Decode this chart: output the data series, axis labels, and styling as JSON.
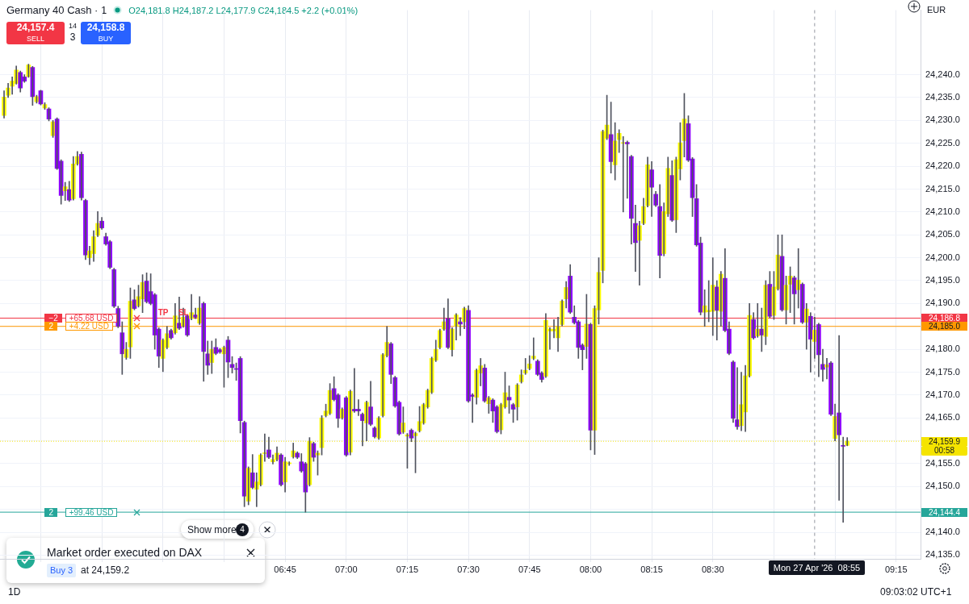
{
  "chart_data": {
    "type": "candlestick",
    "title": "Germany 40 Cash · 1",
    "subtitle": "O24,181.8 H24,187.2 L24,177.9 C24,184.5 +2.2 (+0.01%)",
    "ylabel": "EUR",
    "x": [
      "2026-04-27T05:36",
      "2026-04-27T05:37",
      "2026-04-27T05:38",
      "2026-04-27T05:39",
      "2026-04-27T05:40",
      "2026-04-27T05:41",
      "2026-04-27T05:42",
      "2026-04-27T05:43",
      "2026-04-27T05:44",
      "2026-04-27T05:45",
      "2026-04-27T05:46",
      "2026-04-27T05:47",
      "2026-04-27T05:48",
      "2026-04-27T05:49",
      "2026-04-27T05:50",
      "2026-04-27T05:51",
      "2026-04-27T05:52",
      "2026-04-27T05:53",
      "2026-04-27T05:54",
      "2026-04-27T05:55",
      "2026-04-27T05:56",
      "2026-04-27T05:57",
      "2026-04-27T05:58",
      "2026-04-27T05:59",
      "2026-04-27T06:00",
      "2026-04-27T06:01",
      "2026-04-27T06:02",
      "2026-04-27T06:03",
      "2026-04-27T06:04",
      "2026-04-27T06:05",
      "2026-04-27T06:06",
      "2026-04-27T06:07",
      "2026-04-27T06:08",
      "2026-04-27T06:09",
      "2026-04-27T06:10",
      "2026-04-27T06:11",
      "2026-04-27T06:12",
      "2026-04-27T06:13",
      "2026-04-27T06:14",
      "2026-04-27T06:15",
      "2026-04-27T06:16",
      "2026-04-27T06:17",
      "2026-04-27T06:18",
      "2026-04-27T06:19",
      "2026-04-27T06:20",
      "2026-04-27T06:21",
      "2026-04-27T06:22",
      "2026-04-27T06:23",
      "2026-04-27T06:24",
      "2026-04-27T06:25",
      "2026-04-27T06:26",
      "2026-04-27T06:27",
      "2026-04-27T06:28",
      "2026-04-27T06:29",
      "2026-04-27T06:30",
      "2026-04-27T06:31",
      "2026-04-27T06:32",
      "2026-04-27T06:33",
      "2026-04-27T06:34",
      "2026-04-27T06:35",
      "2026-04-27T06:36",
      "2026-04-27T06:37",
      "2026-04-27T06:38",
      "2026-04-27T06:39",
      "2026-04-27T06:40",
      "2026-04-27T06:41",
      "2026-04-27T06:42",
      "2026-04-27T06:43",
      "2026-04-27T06:44",
      "2026-04-27T06:45",
      "2026-04-27T06:46",
      "2026-04-27T06:47",
      "2026-04-27T06:48",
      "2026-04-27T06:49",
      "2026-04-27T06:50",
      "2026-04-27T06:51",
      "2026-04-27T06:52",
      "2026-04-27T06:53",
      "2026-04-27T06:54",
      "2026-04-27T06:55",
      "2026-04-27T06:56",
      "2026-04-27T06:57",
      "2026-04-27T06:58",
      "2026-04-27T06:59",
      "2026-04-27T07:00",
      "2026-04-27T07:01",
      "2026-04-27T07:02",
      "2026-04-27T07:03",
      "2026-04-27T07:04",
      "2026-04-27T07:05",
      "2026-04-27T07:06",
      "2026-04-27T07:07",
      "2026-04-27T07:08",
      "2026-04-27T07:09",
      "2026-04-27T07:10",
      "2026-04-27T07:11",
      "2026-04-27T07:12",
      "2026-04-27T07:13",
      "2026-04-27T07:14",
      "2026-04-27T07:15",
      "2026-04-27T07:16",
      "2026-04-27T07:17",
      "2026-04-27T07:18",
      "2026-04-27T07:19",
      "2026-04-27T07:20",
      "2026-04-27T07:21",
      "2026-04-27T07:22",
      "2026-04-27T07:23",
      "2026-04-27T07:24",
      "2026-04-27T07:25",
      "2026-04-27T07:26",
      "2026-04-27T07:27",
      "2026-04-27T07:28",
      "2026-04-27T07:29",
      "2026-04-27T07:30",
      "2026-04-27T07:31",
      "2026-04-27T07:32",
      "2026-04-27T07:33",
      "2026-04-27T07:34",
      "2026-04-27T07:35",
      "2026-04-27T07:36",
      "2026-04-27T07:37",
      "2026-04-27T07:38",
      "2026-04-27T07:39",
      "2026-04-27T07:40",
      "2026-04-27T07:41",
      "2026-04-27T07:42",
      "2026-04-27T07:43",
      "2026-04-27T07:44",
      "2026-04-27T07:45",
      "2026-04-27T07:46",
      "2026-04-27T07:47",
      "2026-04-27T07:48",
      "2026-04-27T07:49",
      "2026-04-27T07:50",
      "2026-04-27T07:51",
      "2026-04-27T07:52",
      "2026-04-27T07:53",
      "2026-04-27T07:54",
      "2026-04-27T07:55",
      "2026-04-27T07:56",
      "2026-04-27T07:57",
      "2026-04-27T07:58",
      "2026-04-27T07:59",
      "2026-04-27T08:00",
      "2026-04-27T08:01",
      "2026-04-27T08:02",
      "2026-04-27T08:03",
      "2026-04-27T08:04",
      "2026-04-27T08:05",
      "2026-04-27T08:06",
      "2026-04-27T08:07",
      "2026-04-27T08:08",
      "2026-04-27T08:09",
      "2026-04-27T08:10",
      "2026-04-27T08:11",
      "2026-04-27T08:12",
      "2026-04-27T08:13",
      "2026-04-27T08:14",
      "2026-04-27T08:15",
      "2026-04-27T08:16",
      "2026-04-27T08:17",
      "2026-04-27T08:18",
      "2026-04-27T08:19",
      "2026-04-27T08:20",
      "2026-04-27T08:21",
      "2026-04-27T08:22",
      "2026-04-27T08:23",
      "2026-04-27T08:24",
      "2026-04-27T08:25",
      "2026-04-27T08:26",
      "2026-04-27T08:27",
      "2026-04-27T08:28",
      "2026-04-27T08:29",
      "2026-04-27T08:30",
      "2026-04-27T08:31",
      "2026-04-27T08:32",
      "2026-04-27T08:33",
      "2026-04-27T08:34",
      "2026-04-27T08:35",
      "2026-04-27T08:36",
      "2026-04-27T08:37",
      "2026-04-27T08:38",
      "2026-04-27T08:39",
      "2026-04-27T08:40",
      "2026-04-27T08:41",
      "2026-04-27T08:42",
      "2026-04-27T08:43",
      "2026-04-27T08:44",
      "2026-04-27T08:45",
      "2026-04-27T08:46",
      "2026-04-27T08:47",
      "2026-04-27T08:48",
      "2026-04-27T08:49",
      "2026-04-27T08:50",
      "2026-04-27T08:51",
      "2026-04-27T08:52",
      "2026-04-27T08:53",
      "2026-04-27T08:54",
      "2026-04-27T08:55",
      "2026-04-27T08:56",
      "2026-04-27T08:57",
      "2026-04-27T08:58",
      "2026-04-27T08:59",
      "2026-04-27T09:00",
      "2026-04-27T09:01",
      "2026-04-27T09:02",
      "2026-04-27T09:03"
    ],
    "ohlc": [
      [
        24231.1,
        24236.5,
        24230.5,
        24235.1
      ],
      [
        24235.5,
        24238.1,
        24235.0,
        24237.1
      ],
      [
        24237.5,
        24239.5,
        24235.7,
        24238.6
      ],
      [
        24238.1,
        24241.9,
        24237.9,
        24241.0
      ],
      [
        24240.5,
        24240.8,
        24236.2,
        24237.1
      ],
      [
        24239.5,
        24240.0,
        24238.3,
        24238.6
      ],
      [
        24239.6,
        24242.3,
        24239.4,
        24242.1
      ],
      [
        24241.6,
        24241.8,
        24233.3,
        24235.2
      ],
      [
        24234.1,
        24235.5,
        24233.8,
        24235.2
      ],
      [
        24236.5,
        24236.6,
        24233.4,
        24233.6
      ],
      [
        24232.7,
        24233.9,
        24232.4,
        24233.5
      ],
      [
        24232.5,
        24232.8,
        24229.9,
        24230.3
      ],
      [
        24226.7,
        24230.0,
        24226.3,
        24229.7
      ],
      [
        24230.3,
        24230.6,
        24219.3,
        24219.5
      ],
      [
        24221.1,
        24221.4,
        24211.7,
        24213.6
      ],
      [
        24214.6,
        24216.5,
        24212.5,
        24215.5
      ],
      [
        24214.9,
        24216.7,
        24212.3,
        24212.6
      ],
      [
        24212.9,
        24222.1,
        24212.6,
        24220.5
      ],
      [
        24220.5,
        24223.2,
        24220.2,
        24222.1
      ],
      [
        24222.6,
        24223.1,
        24212.6,
        24213.1
      ],
      [
        24212.5,
        24212.8,
        24199.6,
        24200.6
      ],
      [
        24200.0,
        24202.5,
        24198.5,
        24201.5
      ],
      [
        24200.9,
        24205.9,
        24199.2,
        24204.6
      ],
      [
        24204.9,
        24210.1,
        24204.6,
        24207.5
      ],
      [
        24208.0,
        24208.8,
        24206.2,
        24206.5
      ],
      [
        24204.6,
        24205.4,
        24202.7,
        24203.0
      ],
      [
        24203.5,
        24203.8,
        24197.6,
        24197.9
      ],
      [
        24197.4,
        24197.7,
        24189.1,
        24189.4
      ],
      [
        24188.9,
        24189.4,
        24184.7,
        24185.0
      ],
      [
        24183.6,
        24186.0,
        24174.5,
        24179.0
      ],
      [
        24178.2,
        24181.5,
        24177.8,
        24180.0
      ],
      [
        24180.5,
        24193.4,
        24178.0,
        24190.5
      ],
      [
        24190.8,
        24193.0,
        24188.6,
        24188.9
      ],
      [
        24189.5,
        24194.0,
        24189.2,
        24191.5
      ],
      [
        24191.0,
        24196.3,
        24188.0,
        24194.6
      ],
      [
        24194.9,
        24196.7,
        24190.1,
        24190.4
      ],
      [
        24192.6,
        24196.5,
        24189.7,
        24190.0
      ],
      [
        24191.9,
        24192.2,
        24180.0,
        24183.1
      ],
      [
        24184.4,
        24184.7,
        24176.0,
        24178.5
      ],
      [
        24178.0,
        24182.3,
        24175.1,
        24182.0
      ],
      [
        24180.4,
        24185.0,
        24180.1,
        24183.4
      ],
      [
        24184.1,
        24184.4,
        24182.2,
        24182.5
      ],
      [
        24183.6,
        24190.0,
        24183.3,
        24187.3
      ],
      [
        24185.7,
        24191.4,
        24184.3,
        24184.6
      ],
      [
        24185.1,
        24189.0,
        24184.8,
        24187.0
      ],
      [
        24187.3,
        24187.6,
        24182.8,
        24183.1
      ],
      [
        24186.7,
        24192.0,
        24186.4,
        24188.0
      ],
      [
        24187.5,
        24189.0,
        24186.7,
        24187.0
      ],
      [
        24185.7,
        24191.5,
        24185.4,
        24189.0
      ],
      [
        24190.0,
        24190.3,
        24173.0,
        24179.5
      ],
      [
        24179.0,
        24181.8,
        24174.5,
        24176.5
      ],
      [
        24177.1,
        24181.8,
        24174.7,
        24180.0
      ],
      [
        24180.4,
        24182.3,
        24178.8,
        24179.1
      ],
      [
        24179.9,
        24180.2,
        24179.1,
        24179.4
      ],
      [
        24179.0,
        24180.7,
        24171.7,
        24180.4
      ],
      [
        24182.0,
        24182.8,
        24173.8,
        24177.2
      ],
      [
        24176.7,
        24178.4,
        24174.8,
        24176.0
      ],
      [
        24175.7,
        24177.0,
        24173.2,
        24175.6
      ],
      [
        24178.0,
        24178.4,
        24161.7,
        24164.4
      ],
      [
        24164.0,
        24164.3,
        24145.6,
        24147.9
      ],
      [
        24146.8,
        24154.3,
        24146.0,
        24154.0
      ],
      [
        24153.0,
        24157.0,
        24149.5,
        24149.8
      ],
      [
        24149.4,
        24153.0,
        24145.6,
        24151.0
      ],
      [
        24150.4,
        24157.2,
        24150.1,
        24156.9
      ],
      [
        24157.2,
        24161.5,
        24155.5,
        24157.3
      ],
      [
        24158.0,
        24160.8,
        24156.1,
        24156.4
      ],
      [
        24155.4,
        24156.9,
        24154.9,
        24155.9
      ],
      [
        24155.9,
        24158.7,
        24155.6,
        24157.3
      ],
      [
        24156.9,
        24157.2,
        24150.1,
        24150.4
      ],
      [
        24151.0,
        24156.4,
        24148.8,
        24155.4
      ],
      [
        24155.0,
        24155.4,
        24154.6,
        24155.0
      ],
      [
        24156.5,
        24159.5,
        24156.2,
        24157.8
      ],
      [
        24157.3,
        24157.6,
        24156.1,
        24156.4
      ],
      [
        24155.4,
        24157.2,
        24153.1,
        24153.4
      ],
      [
        24155.0,
        24155.3,
        24144.4,
        24148.8
      ],
      [
        24150.4,
        24160.7,
        24150.1,
        24159.9
      ],
      [
        24159.4,
        24159.7,
        24155.5,
        24156.4
      ],
      [
        24156.9,
        24157.8,
        24152.5,
        24157.3
      ],
      [
        24158.5,
        24165.5,
        24156.9,
        24165.0
      ],
      [
        24165.5,
        24168.0,
        24165.2,
        24166.5
      ],
      [
        24166.0,
        24172.5,
        24165.7,
        24171.0
      ],
      [
        24171.4,
        24174.0,
        24168.7,
        24169.0
      ],
      [
        24170.0,
        24170.3,
        24162.9,
        24164.9
      ],
      [
        24165.0,
        24167.2,
        24164.7,
        24166.9
      ],
      [
        24169.4,
        24169.7,
        24156.6,
        24156.9
      ],
      [
        24157.5,
        24171.1,
        24156.9,
        24170.8
      ],
      [
        24166.9,
        24175.8,
        24166.2,
        24166.5
      ],
      [
        24166.9,
        24169.0,
        24165.5,
        24166.5
      ],
      [
        24165.8,
        24166.1,
        24158.9,
        24164.4
      ],
      [
        24163.9,
        24168.7,
        24160.0,
        24168.4
      ],
      [
        24167.4,
        24173.0,
        24163.3,
        24163.6
      ],
      [
        24162.8,
        24163.1,
        24160.6,
        24160.9
      ],
      [
        24160.6,
        24165.3,
        24160.3,
        24165.0
      ],
      [
        24165.5,
        24179.1,
        24165.2,
        24178.8
      ],
      [
        24178.6,
        24185.0,
        24178.3,
        24181.5
      ],
      [
        24181.2,
        24181.5,
        24172.5,
        24174.5
      ],
      [
        24173.8,
        24174.1,
        24167.3,
        24167.6
      ],
      [
        24168.4,
        24168.7,
        24161.2,
        24161.5
      ],
      [
        24161.9,
        24167.4,
        24161.6,
        24163.9
      ],
      [
        24161.0,
        24161.6,
        24154.0,
        24161.3
      ],
      [
        24162.3,
        24162.6,
        24159.8,
        24160.6
      ],
      [
        24161.1,
        24161.9,
        24153.0,
        24161.6
      ],
      [
        24162.2,
        24167.5,
        24161.9,
        24164.2
      ],
      [
        24163.9,
        24168.2,
        24163.6,
        24167.9
      ],
      [
        24167.4,
        24171.3,
        24167.1,
        24171.0
      ],
      [
        24170.6,
        24178.3,
        24170.3,
        24178.0
      ],
      [
        24177.6,
        24182.0,
        24177.3,
        24180.0
      ],
      [
        24180.4,
        24184.4,
        24180.1,
        24184.1
      ],
      [
        24184.4,
        24189.0,
        24184.1,
        24186.0
      ],
      [
        24186.7,
        24191.0,
        24180.1,
        24180.4
      ],
      [
        24179.9,
        24184.7,
        24178.5,
        24184.4
      ],
      [
        24185.1,
        24187.8,
        24182.0,
        24187.5
      ],
      [
        24186.0,
        24186.9,
        24183.0,
        24185.5
      ],
      [
        24186.0,
        24189.2,
        24184.5,
        24188.9
      ],
      [
        24188.5,
        24189.5,
        24168.4,
        24168.7
      ],
      [
        24170.0,
        24170.3,
        24164.0,
        24169.7
      ],
      [
        24169.5,
        24175.7,
        24168.0,
        24175.4
      ],
      [
        24174.8,
        24178.0,
        24172.0,
        24176.4
      ],
      [
        24175.9,
        24176.7,
        24168.4,
        24168.7
      ],
      [
        24168.1,
        24169.7,
        24166.0,
        24169.4
      ],
      [
        24168.9,
        24169.2,
        24164.0,
        24166.5
      ],
      [
        24167.4,
        24167.7,
        24161.7,
        24162.0
      ],
      [
        24162.4,
        24168.2,
        24161.5,
        24167.9
      ],
      [
        24167.4,
        24175.0,
        24167.1,
        24170.5
      ],
      [
        24169.5,
        24172.0,
        24166.0,
        24168.9
      ],
      [
        24167.9,
        24168.2,
        24164.0,
        24166.9
      ],
      [
        24167.4,
        24172.5,
        24164.5,
        24172.2
      ],
      [
        24172.9,
        24175.5,
        24172.6,
        24174.4
      ],
      [
        24174.8,
        24178.0,
        24174.5,
        24175.4
      ],
      [
        24175.8,
        24178.6,
        24175.5,
        24176.8
      ],
      [
        24178.0,
        24182.5,
        24177.7,
        24178.5
      ],
      [
        24177.4,
        24177.7,
        24174.2,
        24174.5
      ],
      [
        24174.8,
        24175.1,
        24172.8,
        24173.4
      ],
      [
        24174.1,
        24187.8,
        24173.8,
        24186.3
      ],
      [
        24184.0,
        24184.7,
        24180.0,
        24184.4
      ],
      [
        24184.0,
        24186.5,
        24182.5,
        24184.4
      ],
      [
        24182.5,
        24187.0,
        24179.5,
        24184.9
      ],
      [
        24185.4,
        24190.8,
        24185.1,
        24190.5
      ],
      [
        24191.0,
        24194.8,
        24189.0,
        24193.5
      ],
      [
        24196.0,
        24198.5,
        24187.8,
        24188.1
      ],
      [
        24187.0,
        24189.5,
        24185.5,
        24185.8
      ],
      [
        24186.0,
        24186.3,
        24178.0,
        24180.4
      ],
      [
        24180.9,
        24181.2,
        24175.5,
        24179.9
      ],
      [
        24180.6,
        24192.0,
        24178.0,
        24185.5
      ],
      [
        24185.4,
        24185.7,
        24158.0,
        24162.3
      ],
      [
        24162.3,
        24189.5,
        24157.0,
        24188.9
      ],
      [
        24188.6,
        24200.0,
        24185.5,
        24196.8
      ],
      [
        24197.2,
        24227.9,
        24194.5,
        24227.6
      ],
      [
        24226.1,
        24235.5,
        24225.8,
        24229.0
      ],
      [
        24226.9,
        24234.0,
        24218.5,
        24221.0
      ],
      [
        24220.3,
        24229.5,
        24217.0,
        24225.5
      ],
      [
        24225.8,
        24228.0,
        24223.0,
        24227.2
      ],
      [
        24225.0,
        24226.5,
        24210.0,
        24225.1
      ],
      [
        24225.2,
        24225.5,
        24213.0,
        24224.9
      ],
      [
        24222.1,
        24222.4,
        24203.0,
        24208.6
      ],
      [
        24207.5,
        24211.5,
        24197.0,
        24203.3
      ],
      [
        24203.8,
        24208.0,
        24194.0,
        24207.0
      ],
      [
        24207.5,
        24213.0,
        24207.2,
        24211.2
      ],
      [
        24211.4,
        24222.0,
        24211.1,
        24220.3
      ],
      [
        24219.2,
        24221.0,
        24209.0,
        24215.4
      ],
      [
        24213.9,
        24214.5,
        24211.2,
        24211.5
      ],
      [
        24211.2,
        24216.0,
        24195.6,
        24200.5
      ],
      [
        24200.9,
        24212.0,
        24200.4,
        24210.1
      ],
      [
        24209.6,
        24222.0,
        24209.0,
        24219.5
      ],
      [
        24218.0,
        24221.2,
        24207.9,
        24208.2
      ],
      [
        24208.3,
        24222.0,
        24205.5,
        24221.4
      ],
      [
        24219.4,
        24229.5,
        24217.0,
        24225.1
      ],
      [
        24225.6,
        24235.9,
        24222.0,
        24230.3
      ],
      [
        24229.3,
        24231.0,
        24221.0,
        24221.3
      ],
      [
        24221.6,
        24221.9,
        24209.0,
        24213.1
      ],
      [
        24212.9,
        24216.0,
        24202.5,
        24202.8
      ],
      [
        24203.2,
        24204.5,
        24187.5,
        24188.1
      ],
      [
        24188.1,
        24193.0,
        24185.0,
        24189.5
      ],
      [
        24188.2,
        24195.0,
        24186.0,
        24188.5
      ],
      [
        24188.3,
        24200.0,
        24183.0,
        24194.0
      ],
      [
        24193.6,
        24195.0,
        24182.0,
        24188.5
      ],
      [
        24188.3,
        24197.0,
        24185.0,
        24196.4
      ],
      [
        24195.5,
        24202.0,
        24183.8,
        24184.1
      ],
      [
        24184.4,
        24186.0,
        24178.8,
        24179.1
      ],
      [
        24177.2,
        24177.5,
        24164.0,
        24164.9
      ],
      [
        24164.6,
        24176.0,
        24162.5,
        24163.1
      ],
      [
        24163.3,
        24175.0,
        24162.2,
        24167.9
      ],
      [
        24166.3,
        24176.5,
        24162.0,
        24174.2
      ],
      [
        24174.2,
        24190.0,
        24173.9,
        24187.4
      ],
      [
        24186.5,
        24188.0,
        24182.2,
        24182.5
      ],
      [
        24182.9,
        24190.0,
        24182.6,
        24184.4
      ],
      [
        24184.4,
        24189.0,
        24179.5,
        24183.1
      ],
      [
        24182.8,
        24195.0,
        24181.0,
        24194.0
      ],
      [
        24194.2,
        24197.0,
        24186.9,
        24187.2
      ],
      [
        24187.4,
        24197.0,
        24186.5,
        24193.6
      ],
      [
        24193.2,
        24205.0,
        24192.9,
        24200.6
      ],
      [
        24200.3,
        24205.0,
        24188.3,
        24188.6
      ],
      [
        24188.6,
        24196.0,
        24185.5,
        24194.0
      ],
      [
        24194.2,
        24198.0,
        24188.0,
        24196.0
      ],
      [
        24195.6,
        24196.0,
        24185.5,
        24192.1
      ],
      [
        24193.0,
        24202.0,
        24189.0,
        24195.1
      ],
      [
        24194.2,
        24194.5,
        24185.6,
        24185.9
      ],
      [
        24185.9,
        24190.0,
        24180.0,
        24188.8
      ],
      [
        24187.2,
        24188.0,
        24175.0,
        24182.2
      ],
      [
        24181.7,
        24187.0,
        24178.0,
        24184.2
      ],
      [
        24185.4,
        24185.7,
        24174.0,
        24178.8
      ],
      [
        24176.7,
        24180.0,
        24173.0,
        24175.6
      ],
      [
        24176.1,
        24178.0,
        24173.5,
        24176.6
      ],
      [
        24177.0,
        24177.3,
        24165.5,
        24165.8
      ],
      [
        24160.5,
        24168.0,
        24160.0,
        24165.3
      ],
      [
        24166.1,
        24183.0,
        24147.0,
        24161.3
      ],
      [
        24159.0,
        24160.8,
        24142.2,
        24158.8
      ],
      [
        24159.0,
        24160.7,
        24158.9,
        24159.9
      ]
    ],
    "colors": [
      "#ffff00",
      "#ffff00",
      "#ffff00",
      "#ffff00",
      "#8e00ff",
      "#8e00ff",
      "#ffff00",
      "#8e00ff",
      "#ffff00",
      "#8e00ff",
      "#ffff00",
      "#8e00ff",
      "#ffff00",
      "#8e00ff",
      "#8e00ff",
      "#ffff00",
      "#8e00ff",
      "#ffff00",
      "#ffff00",
      "#8e00ff",
      "#8e00ff",
      "#ffff00",
      "#ffff00",
      "#ffff00",
      "#8e00ff",
      "#8e00ff",
      "#8e00ff",
      "#8e00ff",
      "#8e00ff",
      "#8e00ff",
      "#ffff00",
      "#ffff00",
      "#8e00ff",
      "#ffff00",
      "#ffff00",
      "#8e00ff",
      "#8e00ff",
      "#8e00ff",
      "#8e00ff",
      "#ffff00",
      "#ffff00",
      "#8e00ff",
      "#ffff00",
      "#8e00ff",
      "#ffff00",
      "#8e00ff",
      "#ffff00",
      "#8e00ff",
      "#ffff00",
      "#8e00ff",
      "#8e00ff",
      "#ffff00",
      "#8e00ff",
      "#8e00ff",
      "#ffff00",
      "#8e00ff",
      "#8e00ff",
      "#8e00ff",
      "#8e00ff",
      "#8e00ff",
      "#ffff00",
      "#8e00ff",
      "#ffff00",
      "#ffff00",
      "#ffff00",
      "#8e00ff",
      "#ffff00",
      "#ffff00",
      "#8e00ff",
      "#ffff00",
      "#ffff00",
      "#ffff00",
      "#8e00ff",
      "#8e00ff",
      "#8e00ff",
      "#ffff00",
      "#8e00ff",
      "#ffff00",
      "#ffff00",
      "#ffff00",
      "#ffff00",
      "#8e00ff",
      "#8e00ff",
      "#ffff00",
      "#8e00ff",
      "#ffff00",
      "#8e00ff",
      "#8e00ff",
      "#8e00ff",
      "#ffff00",
      "#8e00ff",
      "#8e00ff",
      "#ffff00",
      "#ffff00",
      "#ffff00",
      "#8e00ff",
      "#8e00ff",
      "#8e00ff",
      "#ffff00",
      "#ffff00",
      "#8e00ff",
      "#ffff00",
      "#ffff00",
      "#ffff00",
      "#ffff00",
      "#ffff00",
      "#ffff00",
      "#ffff00",
      "#ffff00",
      "#8e00ff",
      "#ffff00",
      "#ffff00",
      "#8e00ff",
      "#ffff00",
      "#8e00ff",
      "#8e00ff",
      "#ffff00",
      "#ffff00",
      "#8e00ff",
      "#ffff00",
      "#8e00ff",
      "#8e00ff",
      "#ffff00",
      "#ffff00",
      "#8e00ff",
      "#8e00ff",
      "#ffff00",
      "#ffff00",
      "#ffff00",
      "#ffff00",
      "#ffff00",
      "#8e00ff",
      "#8e00ff",
      "#ffff00",
      "#ffff00",
      "#ffff00",
      "#ffff00",
      "#ffff00",
      "#ffff00",
      "#8e00ff",
      "#8e00ff",
      "#8e00ff",
      "#8e00ff",
      "#ffff00",
      "#8e00ff",
      "#ffff00",
      "#ffff00",
      "#ffff00",
      "#ffff00",
      "#8e00ff",
      "#ffff00",
      "#ffff00",
      "#ffff00",
      "#8e00ff",
      "#8e00ff",
      "#8e00ff",
      "#ffff00",
      "#ffff00",
      "#ffff00",
      "#8e00ff",
      "#8e00ff",
      "#8e00ff",
      "#ffff00",
      "#ffff00",
      "#8e00ff",
      "#ffff00",
      "#ffff00",
      "#ffff00",
      "#8e00ff",
      "#8e00ff",
      "#8e00ff",
      "#8e00ff",
      "#ffff00",
      "#ffff00",
      "#ffff00",
      "#8e00ff",
      "#ffff00",
      "#8e00ff",
      "#8e00ff",
      "#8e00ff",
      "#8e00ff",
      "#ffff00",
      "#ffff00",
      "#ffff00",
      "#8e00ff",
      "#ffff00",
      "#8e00ff",
      "#ffff00",
      "#8e00ff",
      "#ffff00",
      "#ffff00",
      "#8e00ff",
      "#ffff00",
      "#ffff00",
      "#8e00ff",
      "#ffff00",
      "#8e00ff",
      "#ffff00",
      "#8e00ff",
      "#ffff00",
      "#8e00ff",
      "#8e00ff",
      "#ffff00",
      "#8e00ff",
      "#ffff00",
      "#8e00ff",
      "#8e00ff",
      "#ffff00"
    ],
    "xlim": [
      "2026-04-27T05:35",
      "2026-04-27T09:21"
    ],
    "xticks": [
      {
        "value": "2026-04-27T05:45",
        "label": null
      },
      {
        "value": "2026-04-27T06:00",
        "label": null
      },
      {
        "value": "2026-04-27T06:15",
        "label": null
      },
      {
        "value": "2026-04-27T06:30",
        "label": null
      },
      {
        "value": "2026-04-27T06:45",
        "label": "06:45"
      },
      {
        "value": "2026-04-27T07:00",
        "label": "07:00"
      },
      {
        "value": "2026-04-27T07:15",
        "label": "07:15"
      },
      {
        "value": "2026-04-27T07:30",
        "label": "07:30"
      },
      {
        "value": "2026-04-27T07:45",
        "label": "07:45"
      },
      {
        "value": "2026-04-27T08:00",
        "label": "08:00"
      },
      {
        "value": "2026-04-27T08:15",
        "label": "08:15"
      },
      {
        "value": "2026-04-27T08:30",
        "label": "08:30"
      },
      {
        "value": "2026-04-27T08:45",
        "label": null
      },
      {
        "value": "2026-04-27T09:00",
        "label": null
      },
      {
        "value": "2026-04-27T09:15",
        "label": "09:15"
      }
    ],
    "ylim": [
      24134.2,
      24254.1
    ],
    "yticks": [
      {
        "value": 24135,
        "label": "24,135.0"
      },
      {
        "value": 24140,
        "label": "24,140.0"
      },
      {
        "value": 24145,
        "label": null
      },
      {
        "value": 24150,
        "label": "24,150.0"
      },
      {
        "value": 24155,
        "label": "24,155.0"
      },
      {
        "value": 24160,
        "label": null
      },
      {
        "value": 24165,
        "label": "24,165.0"
      },
      {
        "value": 24170,
        "label": "24,170.0"
      },
      {
        "value": 24175,
        "label": "24,175.0"
      },
      {
        "value": 24180,
        "label": "24,180.0"
      },
      {
        "value": 24185,
        "label": null
      },
      {
        "value": 24190,
        "label": "24,190.0"
      },
      {
        "value": 24195,
        "label": "24,195.0"
      },
      {
        "value": 24200,
        "label": "24,200.0"
      },
      {
        "value": 24205,
        "label": "24,205.0"
      },
      {
        "value": 24210,
        "label": "24,210.0"
      },
      {
        "value": 24215,
        "label": "24,215.0"
      },
      {
        "value": 24220,
        "label": "24,220.0"
      },
      {
        "value": 24225,
        "label": "24,225.0"
      },
      {
        "value": 24230,
        "label": "24,230.0"
      },
      {
        "value": 24235,
        "label": "24,235.0"
      },
      {
        "value": 24240,
        "label": "24,240.0"
      }
    ],
    "grid": true,
    "ref_lines": [
      {
        "axis": "y",
        "value": 24186.8,
        "label": "24,186.8",
        "color": "#f23645"
      },
      {
        "axis": "y",
        "value": 24185.0,
        "label": "24,185.0",
        "color": "#ff9800"
      },
      {
        "axis": "y",
        "value": 24159.9,
        "label": "24,159.9",
        "color": "#f5e400",
        "line_style": "dotted"
      },
      {
        "axis": "y",
        "value": 24144.4,
        "label": "24,144.4",
        "color": "#26a69a"
      },
      {
        "axis": "x",
        "value": "2026-04-27T08:55",
        "label": "Mon 27 Apr '26  08:55",
        "color": "#9598a1",
        "line_style": "dashed"
      }
    ],
    "annotations": [
      {
        "text": "−2",
        "x": "2026-04-27T05:46",
        "y": 24186.8
      },
      {
        "text": "+65.68 USD",
        "x": "2026-04-27T05:51",
        "y": 24186.8
      },
      {
        "text": "TP",
        "x": "2026-04-27T06:13",
        "y": 24186.8
      },
      {
        "text": "SL",
        "x": "2026-04-27T06:18",
        "y": 24186.8
      },
      {
        "text": "2",
        "x": "2026-04-27T05:46",
        "y": 24185.0
      },
      {
        "text": "+4.22 USD",
        "x": "2026-04-27T05:51",
        "y": 24185.0
      },
      {
        "text": "2",
        "x": "2026-04-27T05:46",
        "y": 24144.4
      },
      {
        "text": "+99.46 USD",
        "x": "2026-04-27T05:51",
        "y": 24144.4
      },
      "24,157.4",
      "SELL",
      "14",
      "3",
      "24,158.8",
      "BUY",
      "Show more",
      "4",
      "Market order executed on DAX",
      "Buy 3",
      "at 24,159.2",
      "09:03:02 UTC+1",
      "1D",
      "00:58"
    ]
  }
}
